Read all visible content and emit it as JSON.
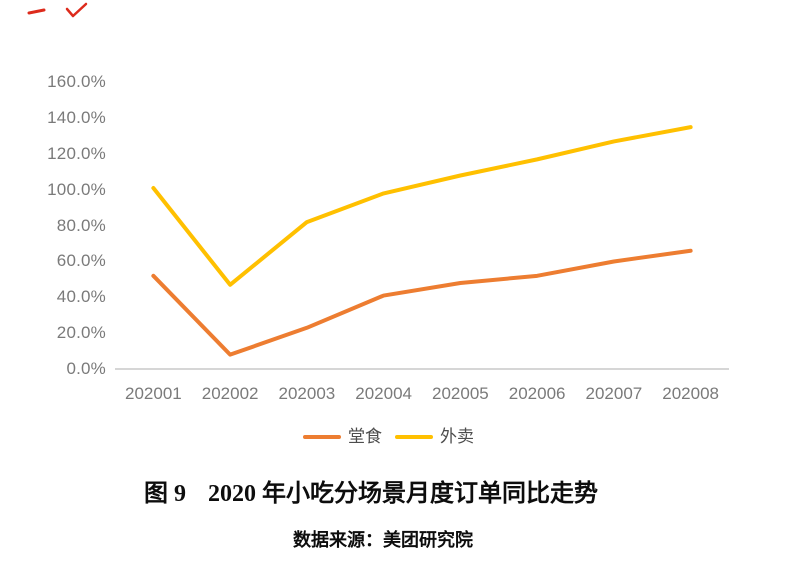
{
  "page": {
    "background": "#ffffff"
  },
  "annotations": {
    "color": "#dd2b1c",
    "marks": [
      "red-dash-mark",
      "red-check-mark"
    ]
  },
  "chart_data": {
    "type": "line",
    "title": "",
    "categories": [
      "202001",
      "202002",
      "202003",
      "202004",
      "202005",
      "202006",
      "202007",
      "202008"
    ],
    "series": [
      {
        "name": "堂食",
        "color": "#ED7D31",
        "values": [
          52,
          8,
          23,
          41,
          48,
          52,
          60,
          66
        ]
      },
      {
        "name": "外卖",
        "color": "#FFC000",
        "values": [
          101,
          47,
          82,
          98,
          108,
          117,
          127,
          135
        ]
      }
    ],
    "unit": "percent_yoy",
    "y_ticks": [
      {
        "value": 160,
        "label": "160.0%"
      },
      {
        "value": 140,
        "label": "140.0%"
      },
      {
        "value": 120,
        "label": "120.0%"
      },
      {
        "value": 100,
        "label": "100.0%"
      },
      {
        "value": 80,
        "label": "80.0%"
      },
      {
        "value": 60,
        "label": "60.0%"
      },
      {
        "value": 40,
        "label": "40.0%"
      },
      {
        "value": 20,
        "label": "20.0%"
      },
      {
        "value": 0,
        "label": "0.0%"
      }
    ],
    "ylim": [
      0,
      160
    ],
    "xlabel": "",
    "ylabel": "",
    "grid": false,
    "legend_position": "bottom",
    "axis_color": "#c9c9c9",
    "tick_label_color": "#7a7a7a",
    "line_width": 4
  },
  "caption": {
    "figure_label": "图 9",
    "title": "2020 年小吃分场景月度订单同比走势"
  },
  "source": {
    "text": "数据来源：美团研究院"
  }
}
